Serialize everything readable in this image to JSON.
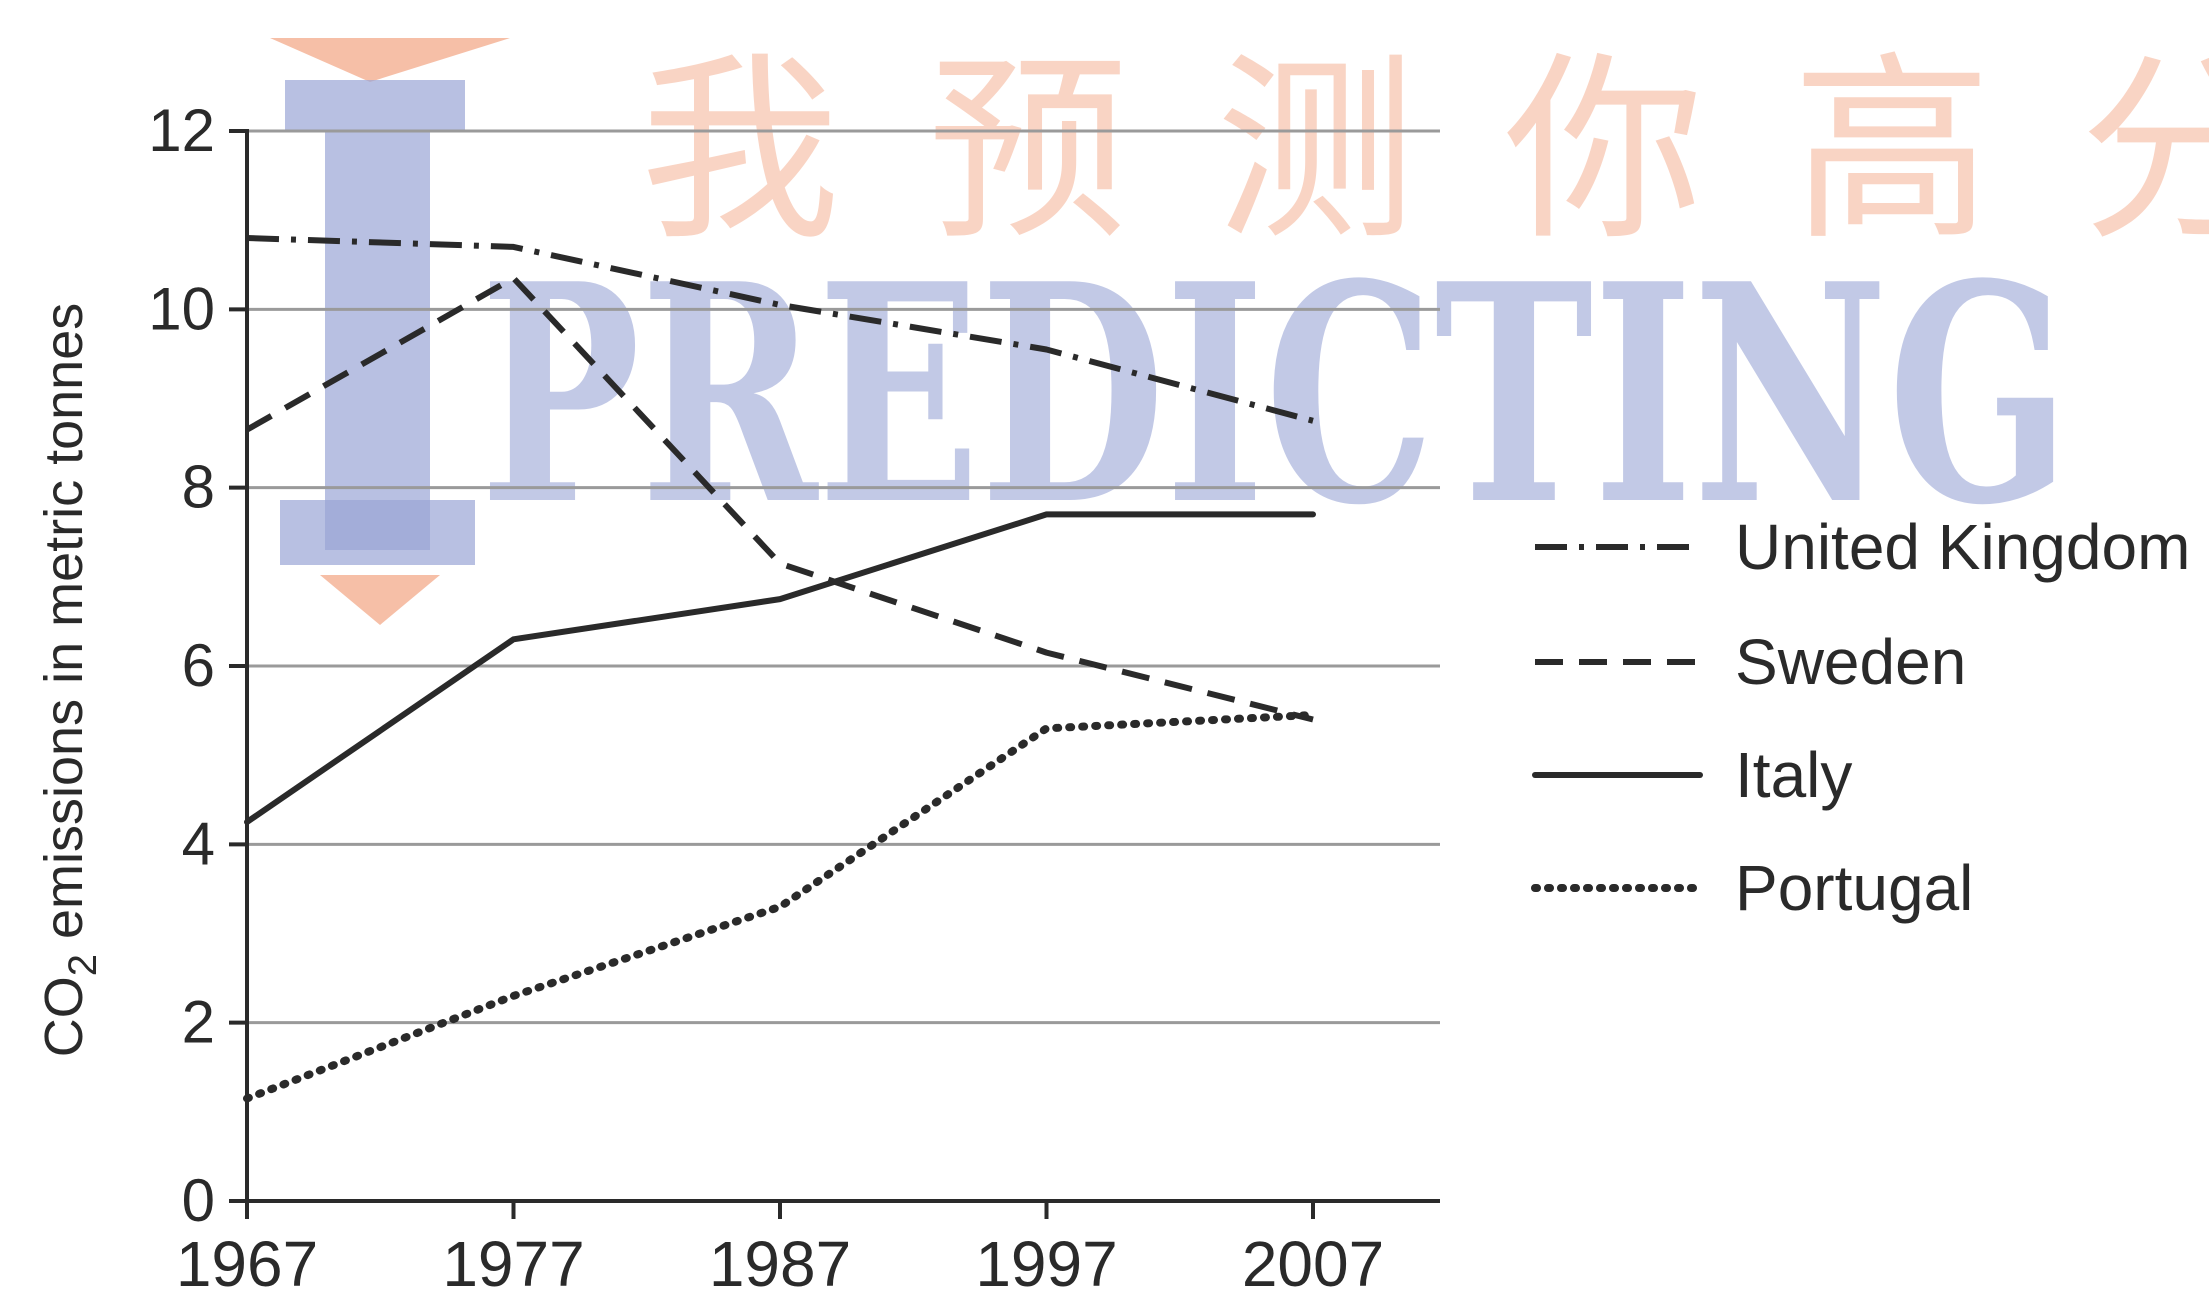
{
  "watermark": {
    "brand_text": "PREDICTING",
    "chinese_text": "我预测你高分",
    "brand_color": "#9aa5d6",
    "accent_color": "#f3a98a"
  },
  "chart_data": {
    "type": "line",
    "title": "",
    "xlabel": "",
    "ylabel": {
      "prefix": "CO",
      "subscript": "2",
      "suffix": " emissions in metric tonnes"
    },
    "x": [
      1967,
      1977,
      1987,
      1997,
      2007
    ],
    "xlim": [
      1967,
      2012
    ],
    "ylim": [
      0,
      12
    ],
    "y_ticks": [
      0,
      2,
      4,
      6,
      8,
      10,
      12
    ],
    "grid": true,
    "legend_position": "right",
    "series": [
      {
        "name": "United Kingdom",
        "style": "dash-dot",
        "values": [
          10.8,
          10.7,
          10.05,
          9.55,
          8.75
        ]
      },
      {
        "name": "Sweden",
        "style": "dashed",
        "values": [
          8.65,
          10.35,
          7.15,
          6.15,
          5.4
        ]
      },
      {
        "name": "Italy",
        "style": "solid",
        "values": [
          4.25,
          6.3,
          6.75,
          7.7,
          7.7
        ]
      },
      {
        "name": "Portugal",
        "style": "dotted",
        "values": [
          1.15,
          2.3,
          3.3,
          5.3,
          5.45
        ]
      }
    ]
  }
}
